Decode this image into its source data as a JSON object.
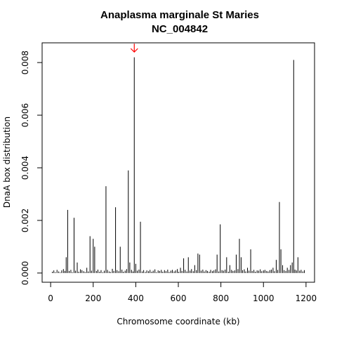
{
  "chart_data": {
    "type": "bar",
    "title": "Anaplasma marginale St Maries",
    "subtitle": "NC_004842",
    "xlabel": "Chromosome coordinate (kb)",
    "ylabel": "DnaA box distribution",
    "xlim": [
      -40,
      1240
    ],
    "ylim": [
      -0.00035,
      0.00875
    ],
    "xticks": [
      0,
      200,
      400,
      600,
      800,
      1000,
      1200
    ],
    "xtick_labels": [
      "0",
      "200",
      "400",
      "600",
      "800",
      "1000",
      "1200"
    ],
    "yticks": [
      0.0,
      0.002,
      0.004,
      0.006,
      0.008
    ],
    "ytick_labels": [
      "0.000",
      "0.002",
      "0.004",
      "0.006",
      "0.008"
    ],
    "grid": false,
    "legend": "none",
    "bar_color": "#000000",
    "annotation": {
      "type": "arrow",
      "x": 393,
      "y": 0.0084,
      "color": "#ff0000"
    },
    "series": [
      {
        "x": [
          8,
          15,
          22,
          30,
          38,
          45,
          52,
          60,
          67,
          73,
          80,
          87,
          95,
          102,
          110,
          117,
          125,
          132,
          140,
          147,
          155,
          162,
          170,
          177,
          185,
          192,
          200,
          207,
          215,
          222,
          230,
          237,
          245,
          252,
          260,
          267,
          275,
          282,
          290,
          297,
          305,
          312,
          320,
          327,
          335,
          342,
          350,
          357,
          365,
          372,
          380,
          387,
          393,
          400,
          407,
          415,
          422,
          430,
          437,
          445,
          452,
          460,
          467,
          475,
          482,
          490,
          497,
          505,
          512,
          520,
          527,
          535,
          542,
          550,
          557,
          565,
          572,
          580,
          587,
          595,
          602,
          610,
          617,
          625,
          632,
          640,
          647,
          655,
          662,
          670,
          677,
          685,
          692,
          700,
          707,
          715,
          722,
          730,
          737,
          745,
          752,
          760,
          767,
          775,
          782,
          790,
          797,
          805,
          812,
          820,
          827,
          835,
          842,
          850,
          857,
          865,
          872,
          880,
          887,
          895,
          902,
          910,
          917,
          925,
          932,
          940,
          947,
          955,
          962,
          970,
          977,
          985,
          992,
          1000,
          1007,
          1015,
          1022,
          1030,
          1037,
          1045,
          1052,
          1060,
          1067,
          1075,
          1082,
          1090,
          1097,
          1105,
          1112,
          1120,
          1127,
          1135,
          1142,
          1148,
          1155,
          1162,
          1170,
          1177,
          1185,
          1192
        ],
        "y": [
          5e-05,
          0.0001,
          3e-05,
          0.00012,
          6e-05,
          2e-05,
          0.0001,
          0.00015,
          8e-05,
          0.0006,
          0.0024,
          8e-05,
          0.00012,
          3e-05,
          0.0021,
          9e-05,
          0.0004,
          5e-05,
          0.00014,
          0.00011,
          7e-05,
          4e-05,
          0.0002,
          6e-05,
          0.0014,
          9e-05,
          0.0013,
          0.001,
          8e-05,
          0.00013,
          5e-05,
          0.00011,
          3e-05,
          9e-05,
          0.0033,
          0.00012,
          6e-05,
          4e-05,
          0.00016,
          8e-05,
          0.0025,
          0.00011,
          7e-05,
          0.001,
          0.00013,
          5e-05,
          9e-05,
          0.00015,
          0.0039,
          0.0004,
          0.00012,
          6e-05,
          0.0082,
          0.00035,
          9e-05,
          0.00013,
          0.00195,
          6e-05,
          0.00011,
          4e-05,
          0.0001,
          7e-05,
          0.00012,
          5e-05,
          9e-05,
          0.00014,
          3e-05,
          0.0001,
          8e-05,
          0.00012,
          5e-05,
          0.00011,
          7e-05,
          0.00013,
          4e-05,
          9e-05,
          0.00012,
          6e-05,
          0.0001,
          0.00015,
          5e-05,
          0.0002,
          8e-05,
          0.00056,
          0.00012,
          6e-05,
          0.0006,
          9e-05,
          0.00015,
          7e-05,
          0.0003,
          0.00011,
          0.00074,
          0.0007,
          9e-05,
          0.00013,
          6e-05,
          0.00011,
          8e-05,
          5e-05,
          0.00012,
          7e-05,
          0.0001,
          0.00014,
          0.0007,
          6e-05,
          0.00185,
          0.00011,
          9e-05,
          0.00013,
          0.0006,
          5e-05,
          0.0003,
          0.00012,
          8e-05,
          0.0001,
          0.0007,
          0.00015,
          0.0013,
          0.0006,
          0.00011,
          0.00014,
          6e-05,
          0.0002,
          9e-05,
          0.0009,
          8e-05,
          0.00012,
          5e-05,
          0.0001,
          9e-05,
          0.00014,
          7e-05,
          0.0001,
          0.00012,
          8e-05,
          6e-05,
          0.00011,
          0.00013,
          0.0002,
          7e-05,
          0.0005,
          0.00012,
          0.0027,
          0.0009,
          0.0003,
          0.00011,
          8e-05,
          0.0002,
          0.00012,
          0.0003,
          0.0004,
          0.0081,
          0.00013,
          0.0001,
          0.0006,
          9e-05,
          0.00012,
          6e-05,
          0.00011
        ]
      }
    ]
  }
}
